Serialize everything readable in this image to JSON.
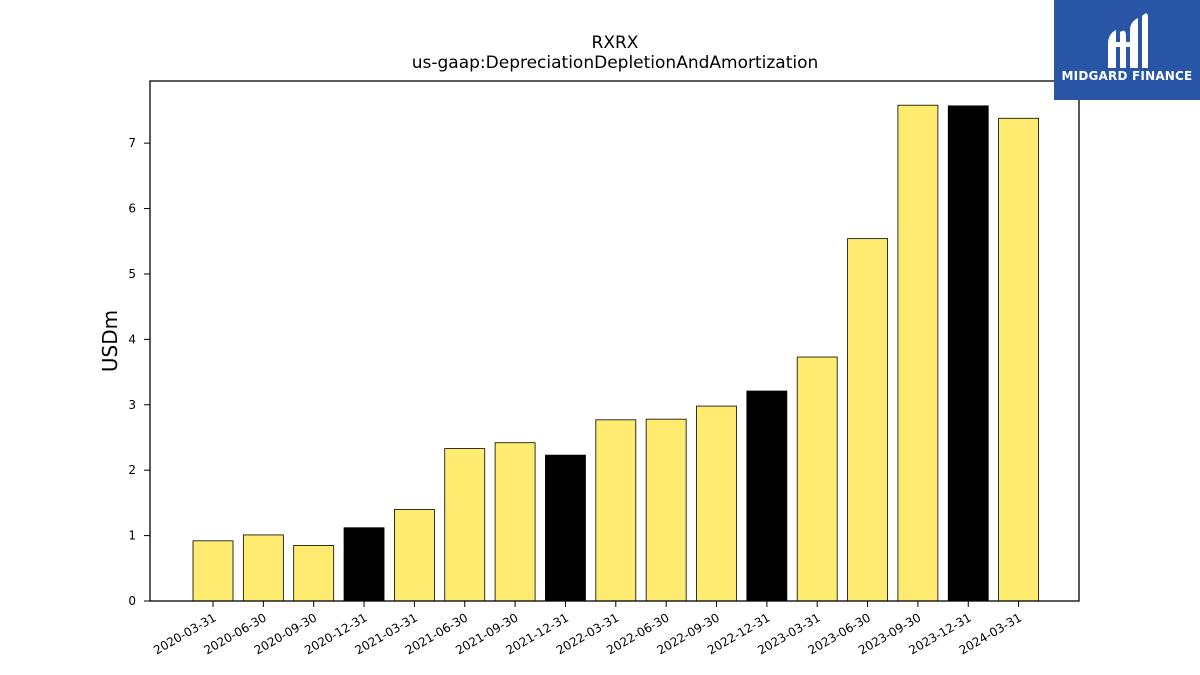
{
  "logo": {
    "text": "MIDGARD FINANCE",
    "background": "#2855a6"
  },
  "chart_data": {
    "type": "bar",
    "title": "RXRX",
    "subtitle": "us-gaap:DepreciationDepletionAndAmortization",
    "xlabel": "",
    "ylabel": "USDm",
    "ylim": [
      0,
      7.95
    ],
    "yticks": [
      0,
      1,
      2,
      3,
      4,
      5,
      6,
      7
    ],
    "grid": false,
    "categories": [
      "2020-03-31",
      "2020-06-30",
      "2020-09-30",
      "2020-12-31",
      "2021-03-31",
      "2021-06-30",
      "2021-09-30",
      "2021-12-31",
      "2022-03-31",
      "2022-06-30",
      "2022-09-30",
      "2022-12-31",
      "2023-03-31",
      "2023-06-30",
      "2023-09-30",
      "2023-12-31",
      "2024-03-31"
    ],
    "values": [
      0.92,
      1.01,
      0.85,
      1.12,
      1.4,
      2.33,
      2.42,
      2.23,
      2.77,
      2.78,
      2.98,
      3.21,
      3.73,
      5.54,
      7.58,
      7.57,
      7.38
    ],
    "bar_colors": [
      "#ffeb70",
      "#ffeb70",
      "#ffeb70",
      "#000000",
      "#ffeb70",
      "#ffeb70",
      "#ffeb70",
      "#000000",
      "#ffeb70",
      "#ffeb70",
      "#ffeb70",
      "#000000",
      "#ffeb70",
      "#ffeb70",
      "#ffeb70",
      "#000000",
      "#ffeb70"
    ]
  }
}
